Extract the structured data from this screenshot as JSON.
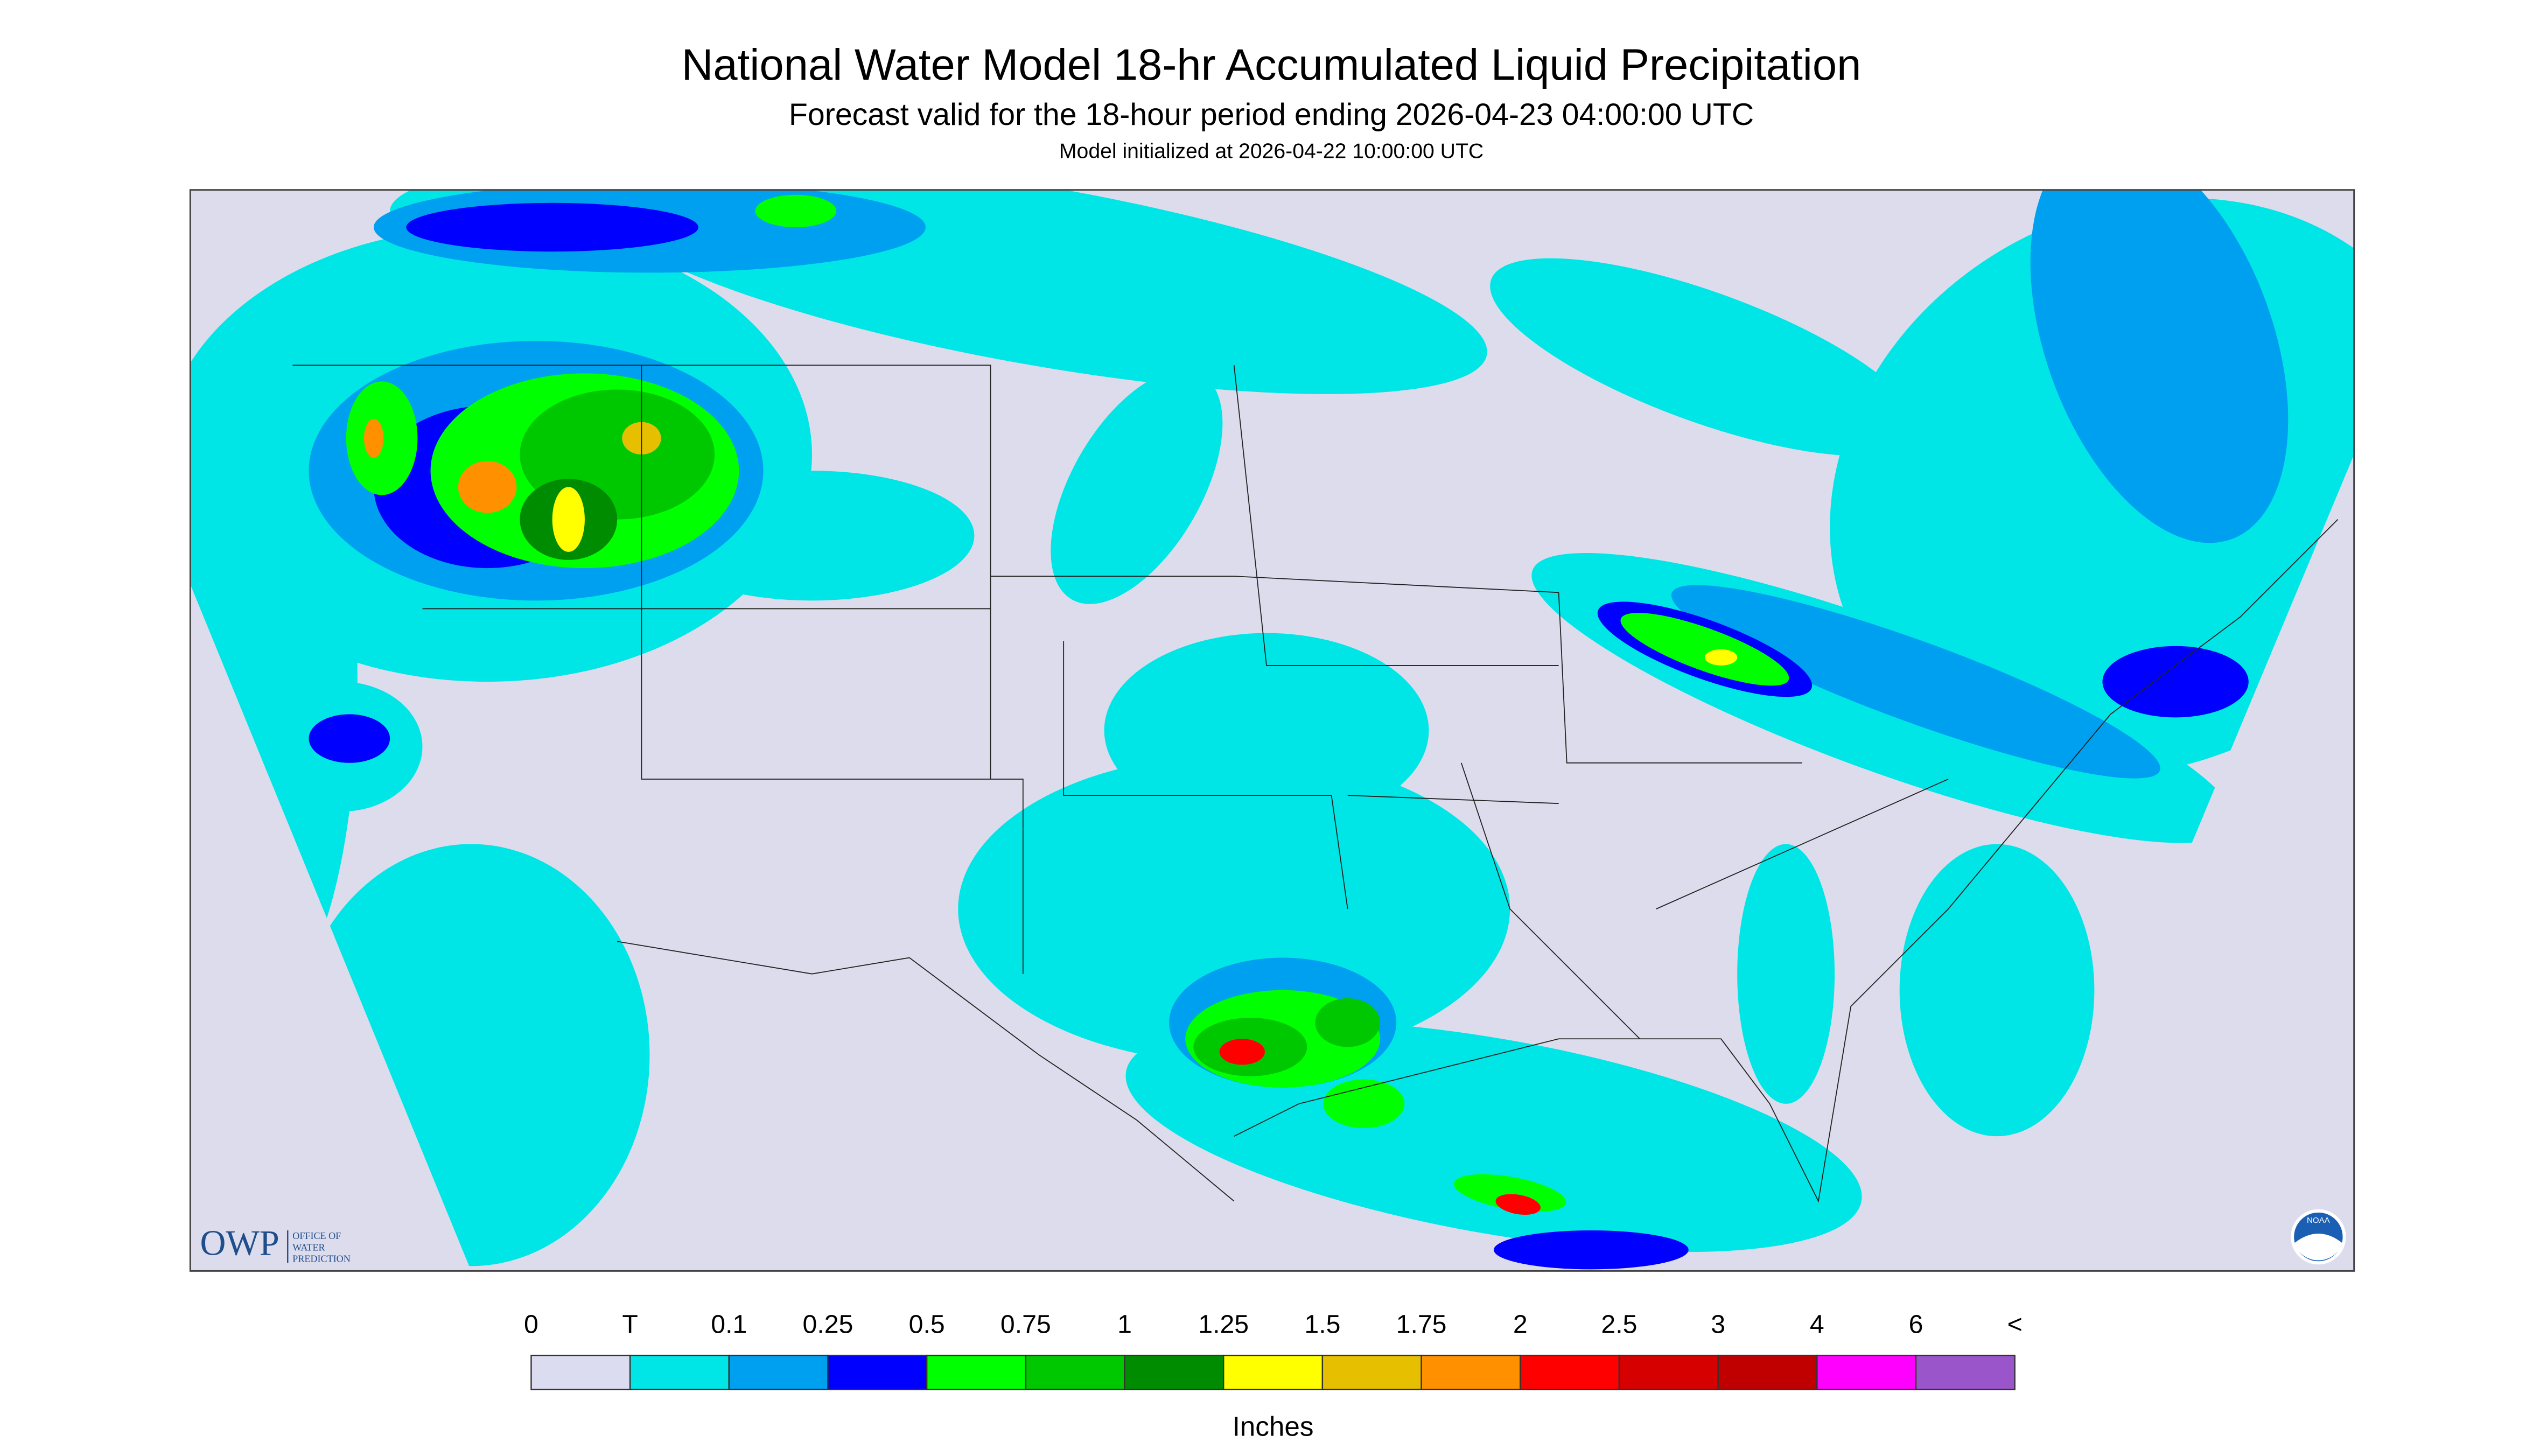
{
  "header": {
    "title": "National Water Model 18-hr Accumulated Liquid Precipitation",
    "subtitle": "Forecast valid for the 18-hour period ending 2026-04-23 04:00:00 UTC",
    "init": "Model initialized at 2026-04-22 10:00:00 UTC"
  },
  "legend": {
    "labels": [
      "0",
      "T",
      "0.1",
      "0.25",
      "0.5",
      "0.75",
      "1",
      "1.25",
      "1.5",
      "1.75",
      "2",
      "2.5",
      "3",
      "4",
      "6",
      "<"
    ],
    "colors": [
      "#dcdcf0",
      "#00e6e6",
      "#00a0f0",
      "#0000ff",
      "#00ff00",
      "#00c800",
      "#008c00",
      "#ffff00",
      "#e6c000",
      "#ff9000",
      "#ff0000",
      "#d60000",
      "#c00000",
      "#ff00ff",
      "#9955c9"
    ],
    "unit": "Inches"
  },
  "logos": {
    "owp": "OWP",
    "owp_name": [
      "OFFICE OF",
      "WATER",
      "PREDICTION"
    ],
    "noaa": "NOAA"
  }
}
